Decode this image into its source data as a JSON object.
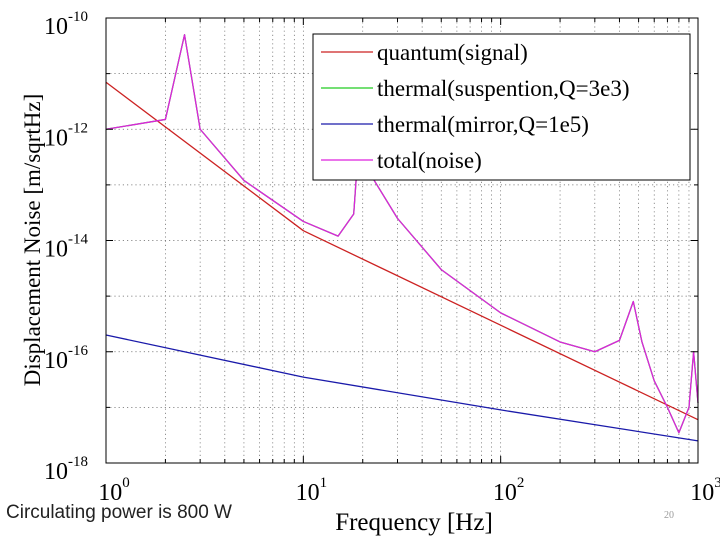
{
  "slide": {
    "caption": "Circulating power is 800 W",
    "page_number": "20"
  },
  "chart_data": {
    "type": "line",
    "title": "",
    "xlabel": "Frequency [Hz]",
    "ylabel": "Displacement Noise [m/sqrtHz]",
    "xscale": "log",
    "yscale": "log",
    "xlim": [
      1,
      1000
    ],
    "ylim": [
      1e-18,
      1e-10
    ],
    "x_ticks": [
      {
        "value": 1,
        "base": "10",
        "exp": "0"
      },
      {
        "value": 10,
        "base": "10",
        "exp": "1"
      },
      {
        "value": 100,
        "base": "10",
        "exp": "2"
      },
      {
        "value": 1000,
        "base": "10",
        "exp": "3"
      }
    ],
    "y_ticks": [
      {
        "value": 1e-10,
        "base": "10",
        "exp": "-10"
      },
      {
        "value": 1e-12,
        "base": "10",
        "exp": "-12"
      },
      {
        "value": 1e-14,
        "base": "10",
        "exp": "-14"
      },
      {
        "value": 1e-16,
        "base": "10",
        "exp": "-16"
      },
      {
        "value": 1e-18,
        "base": "10",
        "exp": "-18"
      }
    ],
    "grid": true,
    "legend_position": "top-right",
    "series": [
      {
        "name": "quantum(signal)",
        "color": "#cc2222",
        "x": [
          1,
          10,
          100,
          1000
        ],
        "y": [
          7e-12,
          1.5e-14,
          3e-16,
          6e-18
        ]
      },
      {
        "name": "thermal(suspention,Q=3e3)",
        "color": "#22cc22",
        "x": [
          1,
          2,
          2.5,
          3,
          5,
          10,
          15,
          18,
          20,
          22,
          30,
          50,
          100,
          200,
          300,
          400,
          470,
          520,
          600,
          700,
          800,
          900,
          950,
          1000
        ],
        "y": [
          1e-12,
          1.5e-12,
          5e-11,
          1e-12,
          1.2e-13,
          2.2e-14,
          1.2e-14,
          3e-14,
          6e-12,
          1.5e-13,
          2.5e-14,
          3e-15,
          5e-16,
          1.5e-16,
          1e-16,
          1.6e-16,
          8e-16,
          1.5e-16,
          3e-17,
          1e-17,
          3.5e-18,
          1e-17,
          1e-16,
          1.2e-17
        ]
      },
      {
        "name": "thermal(mirror,Q=1e5)",
        "color": "#1a1aaa",
        "x": [
          1,
          10,
          100,
          1000
        ],
        "y": [
          2e-16,
          3.5e-17,
          9e-18,
          2.5e-18
        ]
      },
      {
        "name": "total(noise)",
        "color": "#dd22dd",
        "x": [
          1,
          2,
          2.5,
          3,
          5,
          10,
          15,
          18,
          20,
          22,
          30,
          50,
          100,
          200,
          300,
          400,
          470,
          520,
          600,
          700,
          800,
          900,
          950,
          1000
        ],
        "y": [
          1e-12,
          1.5e-12,
          5e-11,
          1e-12,
          1.2e-13,
          2.2e-14,
          1.2e-14,
          3e-14,
          6e-12,
          1.5e-13,
          2.5e-14,
          3e-15,
          5e-16,
          1.5e-16,
          1e-16,
          1.6e-16,
          8e-16,
          1.5e-16,
          3e-17,
          1e-17,
          3.5e-18,
          1e-17,
          1e-16,
          1.2e-17
        ]
      }
    ]
  }
}
